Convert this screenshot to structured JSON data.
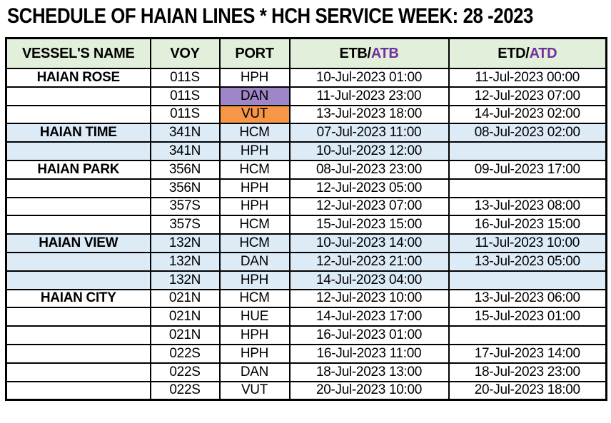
{
  "title": "SCHEDULE OF HAIAN LINES * HCH SERVICE WEEK: 28 -2023",
  "table": {
    "headers": {
      "vessel": "VESSEL'S NAME",
      "voy": "VOY",
      "port": "PORT",
      "etb_prefix": "ETB/",
      "etb_suffix": "ATB",
      "etd_prefix": "ETD/",
      "etd_suffix": "ATD"
    },
    "colors": {
      "header_bg": "#E2EFDA",
      "group_blue": "#DDEBF7",
      "dan_purple": "#9E86C8",
      "vut_orange": "#F79646",
      "accent_purple": "#7030A0",
      "border_black": "#000000"
    },
    "rows": [
      {
        "vessel": "HAIAN ROSE",
        "voy": "011S",
        "port": "HPH",
        "etb": "10-Jul-2023 01:00",
        "etd": "11-Jul-2023 00:00",
        "bg": "white",
        "port_bg": ""
      },
      {
        "vessel": "",
        "voy": "011S",
        "port": "DAN",
        "etb": "11-Jul-2023 23:00",
        "etd": "12-Jul-2023 07:00",
        "bg": "white",
        "port_bg": "purple"
      },
      {
        "vessel": "",
        "voy": "011S",
        "port": "VUT",
        "etb": "13-Jul-2023 18:00",
        "etd": "14-Jul-2023 02:00",
        "bg": "white",
        "port_bg": "orange"
      },
      {
        "vessel": "HAIAN TIME",
        "voy": "341N",
        "port": "HCM",
        "etb": "07-Jul-2023 11:00",
        "etd": "08-Jul-2023 02:00",
        "bg": "blue",
        "port_bg": ""
      },
      {
        "vessel": "",
        "voy": "341N",
        "port": "HPH",
        "etb": "10-Jul-2023 12:00",
        "etd": "",
        "bg": "blue",
        "port_bg": ""
      },
      {
        "vessel": "HAIAN PARK",
        "voy": "356N",
        "port": "HCM",
        "etb": "08-Jul-2023 23:00",
        "etd": "09-Jul-2023 17:00",
        "bg": "white",
        "port_bg": ""
      },
      {
        "vessel": "",
        "voy": "356N",
        "port": "HPH",
        "etb": "12-Jul-2023 05:00",
        "etd": "",
        "bg": "white",
        "port_bg": ""
      },
      {
        "vessel": "",
        "voy": "357S",
        "port": "HPH",
        "etb": "12-Jul-2023 07:00",
        "etd": "13-Jul-2023 08:00",
        "bg": "white",
        "port_bg": ""
      },
      {
        "vessel": "",
        "voy": "357S",
        "port": "HCM",
        "etb": "15-Jul-2023 15:00",
        "etd": "16-Jul-2023 15:00",
        "bg": "white",
        "port_bg": ""
      },
      {
        "vessel": "HAIAN VIEW",
        "voy": "132N",
        "port": "HCM",
        "etb": "10-Jul-2023 14:00",
        "etd": "11-Jul-2023 10:00",
        "bg": "blue",
        "port_bg": ""
      },
      {
        "vessel": "",
        "voy": "132N",
        "port": "DAN",
        "etb": "12-Jul-2023 21:00",
        "etd": "13-Jul-2023 05:00",
        "bg": "blue",
        "port_bg": ""
      },
      {
        "vessel": "",
        "voy": "132N",
        "port": "HPH",
        "etb": "14-Jul-2023 04:00",
        "etd": "",
        "bg": "blue",
        "port_bg": ""
      },
      {
        "vessel": "HAIAN CITY",
        "voy": "021N",
        "port": "HCM",
        "etb": "12-Jul-2023 10:00",
        "etd": "13-Jul-2023 06:00",
        "bg": "white",
        "port_bg": ""
      },
      {
        "vessel": "",
        "voy": "021N",
        "port": "HUE",
        "etb": "14-Jul-2023 17:00",
        "etd": "15-Jul-2023 01:00",
        "bg": "white",
        "port_bg": ""
      },
      {
        "vessel": "",
        "voy": "021N",
        "port": "HPH",
        "etb": "16-Jul-2023 01:00",
        "etd": "",
        "bg": "white",
        "port_bg": ""
      },
      {
        "vessel": "",
        "voy": "022S",
        "port": "HPH",
        "etb": "16-Jul-2023 11:00",
        "etd": "17-Jul-2023 14:00",
        "bg": "white",
        "port_bg": ""
      },
      {
        "vessel": "",
        "voy": "022S",
        "port": "DAN",
        "etb": "18-Jul-2023 13:00",
        "etd": "18-Jul-2023 23:00",
        "bg": "white",
        "port_bg": ""
      },
      {
        "vessel": "",
        "voy": "022S",
        "port": "VUT",
        "etb": "20-Jul-2023 10:00",
        "etd": "20-Jul-2023 18:00",
        "bg": "white",
        "port_bg": ""
      }
    ]
  }
}
